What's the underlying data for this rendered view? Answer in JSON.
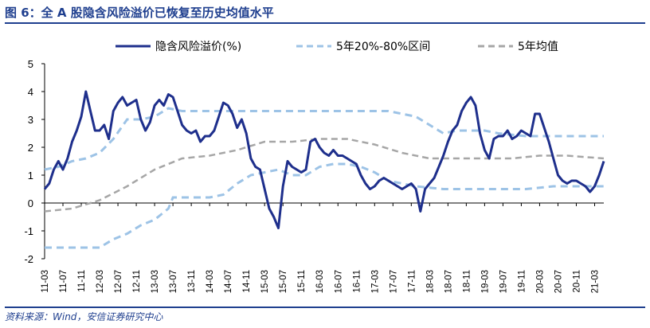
{
  "figure": {
    "title": "图 6：全 A 股隐含风险溢价已恢复至历史均值水平",
    "source": "资料来源：Wind，安信证券研究中心"
  },
  "chart_data": {
    "type": "line",
    "ylim": [
      -2,
      5
    ],
    "yticks": [
      "-2",
      "-1",
      "0",
      "1",
      "2",
      "3",
      "4",
      "5"
    ],
    "x_tick_labels": [
      "11-03",
      "11-07",
      "11-11",
      "12-03",
      "12-07",
      "12-11",
      "13-03",
      "13-07",
      "13-11",
      "14-03",
      "14-07",
      "14-11",
      "15-03",
      "15-07",
      "15-11",
      "16-03",
      "16-07",
      "16-11",
      "17-03",
      "17-07",
      "17-11",
      "18-03",
      "18-07",
      "18-11",
      "19-03",
      "19-07",
      "19-11",
      "20-03",
      "20-07",
      "20-11",
      "21-03"
    ],
    "legend_position": "top",
    "series": [
      {
        "name": "隐含风险溢价(%)",
        "color": "#1e2f8c",
        "style": "solid",
        "points": [
          [
            "11-03",
            0.5
          ],
          [
            "11-04",
            0.7
          ],
          [
            "11-05",
            1.2
          ],
          [
            "11-06",
            1.5
          ],
          [
            "11-07",
            1.2
          ],
          [
            "11-08",
            1.6
          ],
          [
            "11-09",
            2.2
          ],
          [
            "11-10",
            2.6
          ],
          [
            "11-11",
            3.1
          ],
          [
            "11-12",
            4.0
          ],
          [
            "12-01",
            3.3
          ],
          [
            "12-02",
            2.6
          ],
          [
            "12-03",
            2.6
          ],
          [
            "12-04",
            2.8
          ],
          [
            "12-05",
            2.3
          ],
          [
            "12-06",
            3.3
          ],
          [
            "12-07",
            3.6
          ],
          [
            "12-08",
            3.8
          ],
          [
            "12-09",
            3.5
          ],
          [
            "12-10",
            3.6
          ],
          [
            "12-11",
            3.7
          ],
          [
            "12-12",
            3.0
          ],
          [
            "13-01",
            2.6
          ],
          [
            "13-02",
            2.9
          ],
          [
            "13-03",
            3.5
          ],
          [
            "13-04",
            3.7
          ],
          [
            "13-05",
            3.5
          ],
          [
            "13-06",
            3.9
          ],
          [
            "13-07",
            3.8
          ],
          [
            "13-08",
            3.3
          ],
          [
            "13-09",
            2.8
          ],
          [
            "13-10",
            2.6
          ],
          [
            "13-11",
            2.5
          ],
          [
            "13-12",
            2.6
          ],
          [
            "14-01",
            2.2
          ],
          [
            "14-02",
            2.4
          ],
          [
            "14-03",
            2.4
          ],
          [
            "14-04",
            2.6
          ],
          [
            "14-05",
            3.1
          ],
          [
            "14-06",
            3.6
          ],
          [
            "14-07",
            3.5
          ],
          [
            "14-08",
            3.2
          ],
          [
            "14-09",
            2.7
          ],
          [
            "14-10",
            3.0
          ],
          [
            "14-11",
            2.5
          ],
          [
            "14-12",
            1.6
          ],
          [
            "15-01",
            1.3
          ],
          [
            "15-02",
            1.2
          ],
          [
            "15-03",
            0.5
          ],
          [
            "15-04",
            -0.2
          ],
          [
            "15-05",
            -0.5
          ],
          [
            "15-06",
            -0.9
          ],
          [
            "15-07",
            0.6
          ],
          [
            "15-08",
            1.5
          ],
          [
            "15-09",
            1.3
          ],
          [
            "15-10",
            1.2
          ],
          [
            "15-11",
            1.1
          ],
          [
            "15-12",
            1.2
          ],
          [
            "16-01",
            2.2
          ],
          [
            "16-02",
            2.3
          ],
          [
            "16-03",
            2.0
          ],
          [
            "16-04",
            1.8
          ],
          [
            "16-05",
            1.7
          ],
          [
            "16-06",
            1.9
          ],
          [
            "16-07",
            1.7
          ],
          [
            "16-08",
            1.7
          ],
          [
            "16-09",
            1.6
          ],
          [
            "16-10",
            1.5
          ],
          [
            "16-11",
            1.4
          ],
          [
            "16-12",
            1.0
          ],
          [
            "17-01",
            0.7
          ],
          [
            "17-02",
            0.5
          ],
          [
            "17-03",
            0.6
          ],
          [
            "17-04",
            0.8
          ],
          [
            "17-05",
            0.9
          ],
          [
            "17-06",
            0.8
          ],
          [
            "17-07",
            0.7
          ],
          [
            "17-08",
            0.6
          ],
          [
            "17-09",
            0.5
          ],
          [
            "17-10",
            0.6
          ],
          [
            "17-11",
            0.7
          ],
          [
            "17-12",
            0.5
          ],
          [
            "18-01",
            -0.3
          ],
          [
            "18-02",
            0.5
          ],
          [
            "18-03",
            0.7
          ],
          [
            "18-04",
            0.9
          ],
          [
            "18-05",
            1.3
          ],
          [
            "18-06",
            1.7
          ],
          [
            "18-07",
            2.2
          ],
          [
            "18-08",
            2.6
          ],
          [
            "18-09",
            2.8
          ],
          [
            "18-10",
            3.3
          ],
          [
            "18-11",
            3.6
          ],
          [
            "18-12",
            3.8
          ],
          [
            "19-01",
            3.5
          ],
          [
            "19-02",
            2.5
          ],
          [
            "19-03",
            1.9
          ],
          [
            "19-04",
            1.6
          ],
          [
            "19-05",
            2.3
          ],
          [
            "19-06",
            2.4
          ],
          [
            "19-07",
            2.4
          ],
          [
            "19-08",
            2.6
          ],
          [
            "19-09",
            2.3
          ],
          [
            "19-10",
            2.4
          ],
          [
            "19-11",
            2.6
          ],
          [
            "19-12",
            2.5
          ],
          [
            "20-01",
            2.4
          ],
          [
            "20-02",
            3.2
          ],
          [
            "20-03",
            3.2
          ],
          [
            "20-04",
            2.7
          ],
          [
            "20-05",
            2.2
          ],
          [
            "20-06",
            1.6
          ],
          [
            "20-07",
            1.0
          ],
          [
            "20-08",
            0.8
          ],
          [
            "20-09",
            0.7
          ],
          [
            "20-10",
            0.8
          ],
          [
            "20-11",
            0.8
          ],
          [
            "20-12",
            0.7
          ],
          [
            "21-01",
            0.6
          ],
          [
            "21-02",
            0.4
          ],
          [
            "21-03",
            0.6
          ],
          [
            "21-04",
            1.0
          ],
          [
            "21-05",
            1.5
          ]
        ]
      },
      {
        "name": "5年20%-80%区间",
        "color": "#9dc3e6",
        "style": "dashed",
        "bands": [
          {
            "role": "upper",
            "points": [
              [
                "11-03",
                1.2
              ],
              [
                "11-06",
                1.3
              ],
              [
                "11-09",
                1.5
              ],
              [
                "11-12",
                1.6
              ],
              [
                "12-03",
                1.8
              ],
              [
                "12-06",
                2.3
              ],
              [
                "12-09",
                3.0
              ],
              [
                "12-12",
                3.0
              ],
              [
                "13-03",
                3.1
              ],
              [
                "13-06",
                3.4
              ],
              [
                "13-09",
                3.3
              ],
              [
                "13-12",
                3.3
              ],
              [
                "14-03",
                3.3
              ],
              [
                "14-06",
                3.3
              ],
              [
                "14-09",
                3.3
              ],
              [
                "14-12",
                3.3
              ],
              [
                "15-06",
                3.3
              ],
              [
                "15-12",
                3.3
              ],
              [
                "16-06",
                3.3
              ],
              [
                "16-12",
                3.3
              ],
              [
                "17-06",
                3.3
              ],
              [
                "17-12",
                3.1
              ],
              [
                "18-06",
                2.5
              ],
              [
                "18-09",
                2.6
              ],
              [
                "18-12",
                2.6
              ],
              [
                "19-03",
                2.6
              ],
              [
                "19-06",
                2.5
              ],
              [
                "19-12",
                2.4
              ],
              [
                "20-06",
                2.4
              ],
              [
                "20-12",
                2.4
              ],
              [
                "21-05",
                2.4
              ]
            ]
          },
          {
            "role": "lower",
            "points": [
              [
                "11-03",
                -1.6
              ],
              [
                "11-09",
                -1.6
              ],
              [
                "12-03",
                -1.6
              ],
              [
                "12-06",
                -1.3
              ],
              [
                "12-09",
                -1.1
              ],
              [
                "12-12",
                -0.8
              ],
              [
                "13-03",
                -0.6
              ],
              [
                "13-06",
                -0.2
              ],
              [
                "13-07",
                0.2
              ],
              [
                "13-12",
                0.2
              ],
              [
                "14-03",
                0.2
              ],
              [
                "14-06",
                0.3
              ],
              [
                "14-09",
                0.7
              ],
              [
                "14-12",
                1.0
              ],
              [
                "15-03",
                1.1
              ],
              [
                "15-06",
                1.2
              ],
              [
                "15-09",
                1.0
              ],
              [
                "15-12",
                1.0
              ],
              [
                "16-03",
                1.3
              ],
              [
                "16-06",
                1.4
              ],
              [
                "16-09",
                1.4
              ],
              [
                "16-12",
                1.3
              ],
              [
                "17-03",
                1.1
              ],
              [
                "17-06",
                0.8
              ],
              [
                "17-09",
                0.7
              ],
              [
                "17-12",
                0.6
              ],
              [
                "18-06",
                0.5
              ],
              [
                "18-12",
                0.5
              ],
              [
                "19-06",
                0.5
              ],
              [
                "19-12",
                0.5
              ],
              [
                "20-06",
                0.6
              ],
              [
                "20-12",
                0.6
              ],
              [
                "21-05",
                0.6
              ]
            ]
          }
        ]
      },
      {
        "name": "5年均值",
        "color": "#a6a6a6",
        "style": "dashed",
        "points": [
          [
            "11-03",
            -0.3
          ],
          [
            "11-09",
            -0.2
          ],
          [
            "12-03",
            0.1
          ],
          [
            "12-09",
            0.6
          ],
          [
            "13-03",
            1.2
          ],
          [
            "13-09",
            1.6
          ],
          [
            "14-03",
            1.7
          ],
          [
            "14-09",
            1.9
          ],
          [
            "15-03",
            2.2
          ],
          [
            "15-09",
            2.2
          ],
          [
            "16-03",
            2.3
          ],
          [
            "16-09",
            2.3
          ],
          [
            "17-03",
            2.1
          ],
          [
            "17-09",
            1.8
          ],
          [
            "18-03",
            1.6
          ],
          [
            "18-09",
            1.6
          ],
          [
            "19-03",
            1.6
          ],
          [
            "19-09",
            1.6
          ],
          [
            "20-03",
            1.7
          ],
          [
            "20-09",
            1.7
          ],
          [
            "21-05",
            1.6
          ]
        ]
      }
    ]
  }
}
